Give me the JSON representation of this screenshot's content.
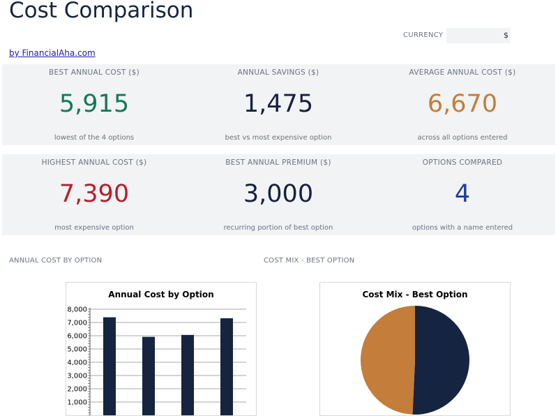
{
  "header": {
    "title": "Cost Comparison",
    "byline": "by FinancialAha.com",
    "currency_label": "CURRENCY",
    "currency_value": "$"
  },
  "kpis": [
    {
      "label": "BEST ANNUAL COST ($)",
      "value": "5,915",
      "sub": "lowest of the 4 options",
      "color": "#14785a"
    },
    {
      "label": "ANNUAL SAVINGS ($)",
      "value": "1,475",
      "sub": "best vs most expensive option",
      "color": "#16213e"
    },
    {
      "label": "AVERAGE ANNUAL COST ($)",
      "value": "6,670",
      "sub": "across all options entered",
      "color": "#c47d3a"
    },
    {
      "label": "HIGHEST ANNUAL COST ($)",
      "value": "7,390",
      "sub": "most expensive option",
      "color": "#b5202a"
    },
    {
      "label": "BEST ANNUAL PREMIUM ($)",
      "value": "3,000",
      "sub": "recurring portion of best option",
      "color": "#16213e"
    },
    {
      "label": "OPTIONS COMPARED",
      "value": "4",
      "sub": "options with a name entered",
      "color": "#1f3e9b"
    }
  ],
  "sections": {
    "bar_label": "ANNUAL COST BY OPTION",
    "pie_label": "COST MIX - BEST OPTION"
  },
  "chart_data": [
    {
      "type": "bar",
      "title": "Annual Cost by Option",
      "categories": [
        "",
        "",
        "",
        ""
      ],
      "values": [
        7390,
        5915,
        6060,
        7315
      ],
      "ylim": [
        0,
        8000
      ],
      "yticks": [
        "1,000",
        "2,000",
        "3,000",
        "4,000",
        "5,000",
        "6,000",
        "7,000",
        "8,000"
      ],
      "grid": true,
      "color": "#152440"
    },
    {
      "type": "pie",
      "title": "Cost Mix - Best Option",
      "values": [
        3000,
        2915
      ],
      "colors": [
        "#152440",
        "#c47d3a"
      ]
    }
  ]
}
